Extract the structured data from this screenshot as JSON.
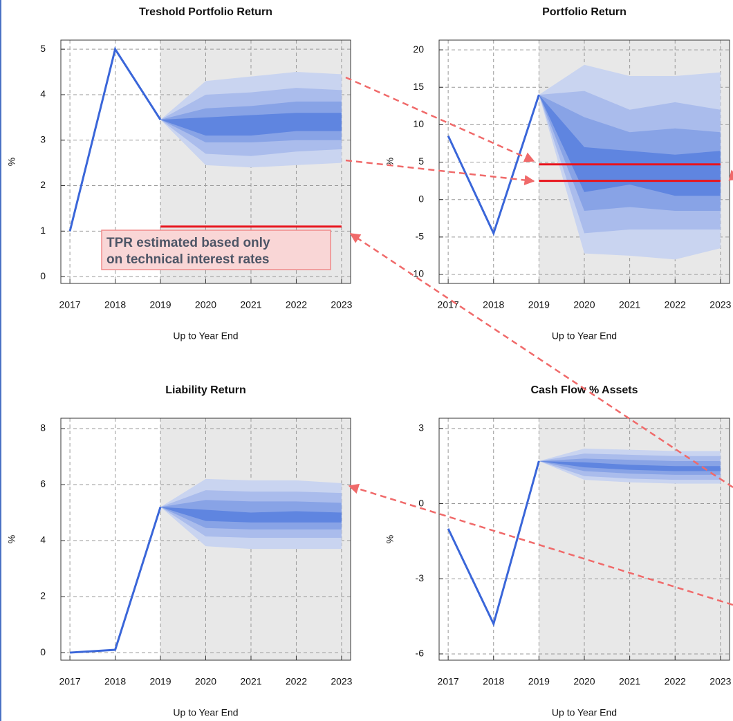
{
  "chart_data": [
    {
      "type": "fan",
      "title": "Treshold Portfolio Return",
      "x_label": "Up to Year End",
      "y_label": "%",
      "x": [
        2017,
        2018,
        2019,
        2020,
        2021,
        2022,
        2023
      ],
      "xlim": [
        2016.8,
        2023.2
      ],
      "xticks": [
        2017,
        2018,
        2019,
        2020,
        2021,
        2022,
        2023
      ],
      "ylim": [
        -0.15,
        5.2
      ],
      "yticks": [
        0,
        1,
        2,
        3,
        4,
        5
      ],
      "grid": true,
      "shade_color": "#e8e8e8",
      "series": [
        {
          "color": "#3a66d9",
          "values": [
            1.0,
            5.0,
            3.45,
            null,
            null,
            null,
            null
          ]
        }
      ],
      "fan": [
        {
          "color": "#c9d4f0",
          "lower": [
            null,
            null,
            3.45,
            2.45,
            2.4,
            2.45,
            2.5
          ],
          "upper": [
            null,
            null,
            3.45,
            4.3,
            4.4,
            4.5,
            4.45
          ]
        },
        {
          "color": "#aabcec",
          "lower": [
            null,
            null,
            3.45,
            2.7,
            2.65,
            2.75,
            2.8
          ],
          "upper": [
            null,
            null,
            3.45,
            4.0,
            4.05,
            4.15,
            4.1
          ]
        },
        {
          "color": "#88a3e6",
          "lower": [
            null,
            null,
            3.45,
            2.95,
            2.95,
            3.0,
            3.0
          ],
          "upper": [
            null,
            null,
            3.45,
            3.7,
            3.75,
            3.85,
            3.85
          ]
        },
        {
          "color": "#5f85e0",
          "lower": [
            null,
            null,
            3.45,
            3.1,
            3.1,
            3.2,
            3.2
          ],
          "upper": [
            null,
            null,
            3.45,
            3.5,
            3.55,
            3.6,
            3.6
          ]
        }
      ],
      "hlines": [
        {
          "value": 1.1,
          "color": "#e8141c"
        }
      ],
      "annotation": [
        "TPR estimated based only",
        "on technical interest rates"
      ]
    },
    {
      "type": "fan",
      "title": "Portfolio Return",
      "x_label": "Up to Year End",
      "y_label": "%",
      "x": [
        2017,
        2018,
        2019,
        2020,
        2021,
        2022,
        2023
      ],
      "xlim": [
        2016.8,
        2023.2
      ],
      "xticks": [
        2017,
        2018,
        2019,
        2020,
        2021,
        2022,
        2023
      ],
      "ylim": [
        -11.2,
        21.3
      ],
      "yticks": [
        -10,
        -5,
        0,
        5,
        10,
        15,
        20
      ],
      "grid": true,
      "shade_color": "#e8e8e8",
      "series": [
        {
          "color": "#3a66d9",
          "values": [
            8.5,
            -4.5,
            14,
            null,
            null,
            null,
            null
          ]
        }
      ],
      "fan": [
        {
          "color": "#c9d4f0",
          "lower": [
            null,
            null,
            14,
            -7.2,
            -7.5,
            -8,
            -6.5
          ],
          "upper": [
            null,
            null,
            14,
            18,
            16.5,
            16.5,
            17
          ]
        },
        {
          "color": "#aabcec",
          "lower": [
            null,
            null,
            14,
            -4.5,
            -4,
            -4,
            -4
          ],
          "upper": [
            null,
            null,
            14,
            14.5,
            12,
            13,
            12
          ]
        },
        {
          "color": "#88a3e6",
          "lower": [
            null,
            null,
            14,
            -1.5,
            -1,
            -1.5,
            -1.5
          ],
          "upper": [
            null,
            null,
            14,
            11,
            9,
            9.5,
            9
          ]
        },
        {
          "color": "#5f85e0",
          "lower": [
            null,
            null,
            14,
            1,
            2,
            0.5,
            0.5
          ],
          "upper": [
            null,
            null,
            14,
            7,
            6.5,
            6,
            6.5
          ]
        }
      ],
      "hlines": [
        {
          "value": 4.7,
          "color": "#e8141c"
        },
        {
          "value": 2.5,
          "color": "#e8141c"
        }
      ]
    },
    {
      "type": "fan",
      "title": "Liability Return",
      "x_label": "Up to Year End",
      "y_label": "%",
      "x": [
        2017,
        2018,
        2019,
        2020,
        2021,
        2022,
        2023
      ],
      "xlim": [
        2016.8,
        2023.2
      ],
      "xticks": [
        2017,
        2018,
        2019,
        2020,
        2021,
        2022,
        2023
      ],
      "ylim": [
        -0.27,
        8.37
      ],
      "yticks": [
        0,
        2,
        4,
        6,
        8
      ],
      "grid": true,
      "shade_color": "#e8e8e8",
      "series": [
        {
          "color": "#3a66d9",
          "values": [
            0.0,
            0.1,
            5.2,
            null,
            null,
            null,
            null
          ]
        }
      ],
      "fan": [
        {
          "color": "#c9d4f0",
          "lower": [
            null,
            null,
            5.2,
            3.8,
            3.7,
            3.7,
            3.7
          ],
          "upper": [
            null,
            null,
            5.2,
            6.2,
            6.15,
            6.15,
            6.05
          ]
        },
        {
          "color": "#aabcec",
          "lower": [
            null,
            null,
            5.2,
            4.15,
            4.1,
            4.1,
            4.1
          ],
          "upper": [
            null,
            null,
            5.2,
            5.8,
            5.75,
            5.75,
            5.7
          ]
        },
        {
          "color": "#88a3e6",
          "lower": [
            null,
            null,
            5.2,
            4.45,
            4.4,
            4.4,
            4.4
          ],
          "upper": [
            null,
            null,
            5.2,
            5.45,
            5.4,
            5.4,
            5.35
          ]
        },
        {
          "color": "#5f85e0",
          "lower": [
            null,
            null,
            5.2,
            4.7,
            4.65,
            4.65,
            4.65
          ],
          "upper": [
            null,
            null,
            5.2,
            5.1,
            5.0,
            5.05,
            5.0
          ]
        }
      ],
      "hlines": []
    },
    {
      "type": "fan",
      "title": "Cash Flow % Assets",
      "x_label": "Up to Year End",
      "y_label": "%",
      "x": [
        2017,
        2018,
        2019,
        2020,
        2021,
        2022,
        2023
      ],
      "xlim": [
        2016.8,
        2023.2
      ],
      "xticks": [
        2017,
        2018,
        2019,
        2020,
        2021,
        2022,
        2023
      ],
      "ylim": [
        -6.25,
        3.41
      ],
      "yticks": [
        -6,
        -3,
        0,
        3
      ],
      "grid": true,
      "shade_color": "#e8e8e8",
      "series": [
        {
          "color": "#3a66d9",
          "values": [
            -1.0,
            -4.8,
            1.7,
            null,
            null,
            null,
            null
          ]
        }
      ],
      "fan": [
        {
          "color": "#c9d4f0",
          "lower": [
            null,
            null,
            1.7,
            0.95,
            0.85,
            0.8,
            0.8
          ],
          "upper": [
            null,
            null,
            1.7,
            2.2,
            2.15,
            2.1,
            2.1
          ]
        },
        {
          "color": "#aabcec",
          "lower": [
            null,
            null,
            1.7,
            1.1,
            1.0,
            0.95,
            0.95
          ],
          "upper": [
            null,
            null,
            1.7,
            2.0,
            1.95,
            1.9,
            1.9
          ]
        },
        {
          "color": "#88a3e6",
          "lower": [
            null,
            null,
            1.7,
            1.3,
            1.2,
            1.15,
            1.15
          ],
          "upper": [
            null,
            null,
            1.7,
            1.8,
            1.75,
            1.7,
            1.7
          ]
        },
        {
          "color": "#5f85e0",
          "lower": [
            null,
            null,
            1.7,
            1.45,
            1.35,
            1.3,
            1.3
          ],
          "upper": [
            null,
            null,
            1.7,
            1.65,
            1.55,
            1.5,
            1.5
          ]
        }
      ],
      "hlines": []
    }
  ]
}
